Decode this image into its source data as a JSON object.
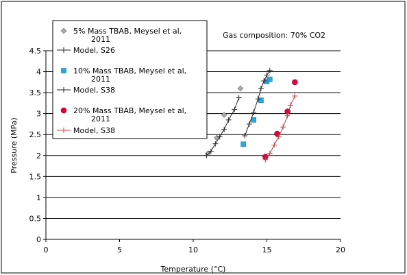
{
  "chart_data": {
    "type": "scatter",
    "title": "",
    "annotation": "Gas composition: 70% CO2",
    "xlabel": "Temperature (°C)",
    "ylabel": "Pressure (MPa)",
    "xlim": [
      0,
      20
    ],
    "ylim": [
      0,
      4.5
    ],
    "x_ticks": [
      "0",
      "5",
      "10",
      "15",
      "20"
    ],
    "y_ticks": [
      "0",
      "0.5",
      "1",
      "1.5",
      "2",
      "2.5",
      "3",
      "3.5",
      "4",
      "4.5"
    ],
    "grid": "horizontal",
    "legend_position": "top-left",
    "series": [
      {
        "name": "5% Mass TBAB, Meysel et al, 2011",
        "kind": "markers",
        "marker": "diamond",
        "color": "#aaaaaa",
        "x": [
          11.0,
          11.6,
          12.1,
          13.2
        ],
        "y": [
          2.05,
          2.42,
          2.97,
          3.6
        ]
      },
      {
        "name": "Model, S26",
        "kind": "line",
        "color": "#222222",
        "x": [
          10.9,
          11.2,
          11.5,
          11.8,
          12.1,
          12.4,
          12.8,
          13.1
        ],
        "y": [
          2.0,
          2.1,
          2.28,
          2.45,
          2.62,
          2.85,
          3.1,
          3.38
        ]
      },
      {
        "name": "10% Mass TBAB, Meysel et al, 2011",
        "kind": "markers",
        "marker": "square",
        "color": "#29a8e0",
        "x": [
          13.4,
          14.1,
          14.6,
          15.0,
          15.2
        ],
        "y": [
          2.27,
          2.85,
          3.32,
          3.77,
          3.82
        ]
      },
      {
        "name": "Model, S38",
        "kind": "line",
        "color": "#222222",
        "x": [
          13.5,
          13.8,
          14.1,
          14.4,
          14.6,
          14.8,
          15.0,
          15.2
        ],
        "y": [
          2.47,
          2.75,
          3.03,
          3.35,
          3.6,
          3.78,
          3.92,
          4.03
        ]
      },
      {
        "name": "20% Mass TBAB, Meysel et al, 2011",
        "kind": "markers",
        "marker": "circle",
        "color": "#e0003c",
        "x": [
          14.9,
          15.7,
          16.4,
          16.9
        ],
        "y": [
          1.97,
          2.52,
          3.05,
          3.75
        ]
      },
      {
        "name": "Model, S38",
        "kind": "line",
        "color": "#c04040",
        "x": [
          14.9,
          15.2,
          15.5,
          15.8,
          16.1,
          16.4,
          16.6,
          16.9
        ],
        "y": [
          1.9,
          2.05,
          2.25,
          2.45,
          2.68,
          2.95,
          3.2,
          3.42
        ]
      }
    ]
  }
}
